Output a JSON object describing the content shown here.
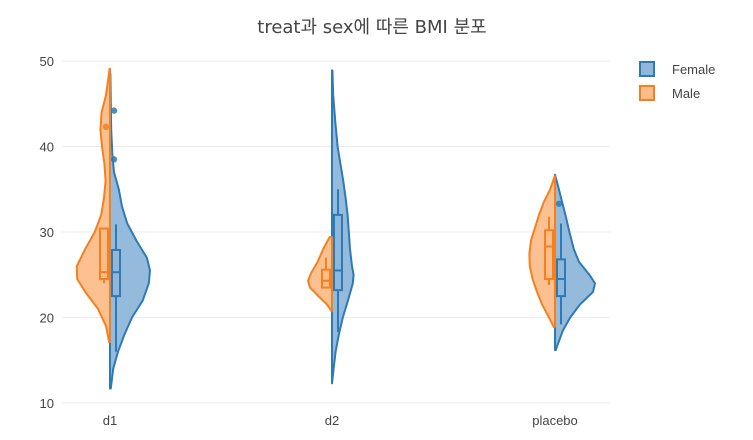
{
  "chart_data": {
    "type": "violin",
    "title": "treat과 sex에 따른 BMI 분포",
    "xlabel": "",
    "ylabel": "",
    "categories": [
      "d1",
      "d2",
      "placebo"
    ],
    "ylim": [
      10,
      50
    ],
    "yticks": [
      10,
      20,
      30,
      40,
      50
    ],
    "grid": true,
    "legend_position": "top-right",
    "series": [
      {
        "name": "Female",
        "side": "positive",
        "fill": "#8fb7da",
        "line": "#2e7ab6",
        "groups": [
          {
            "category": "d1",
            "min": 11.7,
            "max": 48.5,
            "q1": 22.5,
            "median": 25.3,
            "q3": 27.9,
            "whisker_low": 16.0,
            "whisker_high": 30.9,
            "outliers": [
              38.5,
              44.2
            ],
            "density": [
              [
                11.7,
                0.02
              ],
              [
                14,
                0.08
              ],
              [
                16,
                0.2
              ],
              [
                18,
                0.36
              ],
              [
                20,
                0.55
              ],
              [
                22,
                0.82
              ],
              [
                24,
                0.97
              ],
              [
                25.5,
                1.0
              ],
              [
                27,
                0.92
              ],
              [
                29,
                0.66
              ],
              [
                31,
                0.43
              ],
              [
                33,
                0.3
              ],
              [
                35,
                0.22
              ],
              [
                37,
                0.1
              ],
              [
                39,
                0.06
              ],
              [
                42,
                0.03
              ],
              [
                45,
                0.02
              ],
              [
                48.5,
                0.01
              ]
            ]
          },
          {
            "category": "d2",
            "min": 12.3,
            "max": 48.9,
            "q1": 23.2,
            "median": 25.5,
            "q3": 32.0,
            "whisker_low": 18.3,
            "whisker_high": 35.0,
            "outliers": [],
            "density": [
              [
                12.3,
                0.0
              ],
              [
                14,
                0.04
              ],
              [
                16,
                0.09
              ],
              [
                18,
                0.17
              ],
              [
                20,
                0.27
              ],
              [
                22,
                0.4
              ],
              [
                24,
                0.52
              ],
              [
                25,
                0.54
              ],
              [
                26,
                0.5
              ],
              [
                28,
                0.45
              ],
              [
                30,
                0.42
              ],
              [
                32,
                0.39
              ],
              [
                34,
                0.34
              ],
              [
                36,
                0.28
              ],
              [
                38,
                0.21
              ],
              [
                40,
                0.14
              ],
              [
                43,
                0.08
              ],
              [
                46,
                0.03
              ],
              [
                48.9,
                0.01
              ]
            ]
          },
          {
            "category": "placebo",
            "min": 16.2,
            "max": 36.7,
            "q1": 22.5,
            "median": 24.5,
            "q3": 26.8,
            "whisker_low": 19.2,
            "whisker_high": 31.0,
            "outliers": [
              33.3
            ],
            "density": [
              [
                16.2,
                0.02
              ],
              [
                17,
                0.08
              ],
              [
                18.5,
                0.2
              ],
              [
                20,
                0.38
              ],
              [
                21.5,
                0.62
              ],
              [
                23,
                0.95
              ],
              [
                24,
                1.0
              ],
              [
                25,
                0.86
              ],
              [
                26.5,
                0.6
              ],
              [
                28,
                0.47
              ],
              [
                30,
                0.36
              ],
              [
                32,
                0.26
              ],
              [
                34,
                0.15
              ],
              [
                35.5,
                0.07
              ],
              [
                36.7,
                0.0
              ]
            ]
          }
        ]
      },
      {
        "name": "Male",
        "side": "negative",
        "fill": "#fdbd8a",
        "line": "#f5801f",
        "groups": [
          {
            "category": "d1",
            "min": 17.1,
            "max": 49.1,
            "q1": 24.5,
            "median": 25.3,
            "q3": 30.4,
            "whisker_low": 24.0,
            "whisker_high": 30.5,
            "outliers": [
              42.3
            ],
            "density": [
              [
                17.1,
                0.02
              ],
              [
                19,
                0.1
              ],
              [
                21,
                0.3
              ],
              [
                23,
                0.62
              ],
              [
                24.5,
                0.82
              ],
              [
                26,
                0.83
              ],
              [
                28,
                0.62
              ],
              [
                30,
                0.38
              ],
              [
                32,
                0.22
              ],
              [
                34,
                0.15
              ],
              [
                36,
                0.11
              ],
              [
                38,
                0.14
              ],
              [
                40,
                0.2
              ],
              [
                42,
                0.24
              ],
              [
                44,
                0.21
              ],
              [
                46,
                0.1
              ],
              [
                48,
                0.04
              ],
              [
                49.1,
                0.01
              ]
            ]
          },
          {
            "category": "d2",
            "min": 20.8,
            "max": 29.4,
            "q1": 23.5,
            "median": 24.3,
            "q3": 25.6,
            "whisker_low": 23.5,
            "whisker_high": 27.0,
            "outliers": [],
            "density": [
              [
                20.8,
                0.02
              ],
              [
                21.5,
                0.12
              ],
              [
                22.5,
                0.34
              ],
              [
                23.5,
                0.55
              ],
              [
                24.3,
                0.6
              ],
              [
                25.2,
                0.52
              ],
              [
                26.5,
                0.36
              ],
              [
                28,
                0.22
              ],
              [
                29.4,
                0.06
              ]
            ]
          },
          {
            "category": "placebo",
            "min": 18.9,
            "max": 36.5,
            "q1": 24.5,
            "median": 28.3,
            "q3": 30.2,
            "whisker_low": 23.8,
            "whisker_high": 31.8,
            "outliers": [],
            "density": [
              [
                18.9,
                0.03
              ],
              [
                20,
                0.15
              ],
              [
                21.5,
                0.32
              ],
              [
                23,
                0.45
              ],
              [
                24.5,
                0.56
              ],
              [
                26,
                0.63
              ],
              [
                27.5,
                0.64
              ],
              [
                29,
                0.6
              ],
              [
                30.5,
                0.5
              ],
              [
                32,
                0.4
              ],
              [
                33.5,
                0.28
              ],
              [
                35,
                0.12
              ],
              [
                36.5,
                0.01
              ]
            ]
          }
        ]
      }
    ]
  }
}
